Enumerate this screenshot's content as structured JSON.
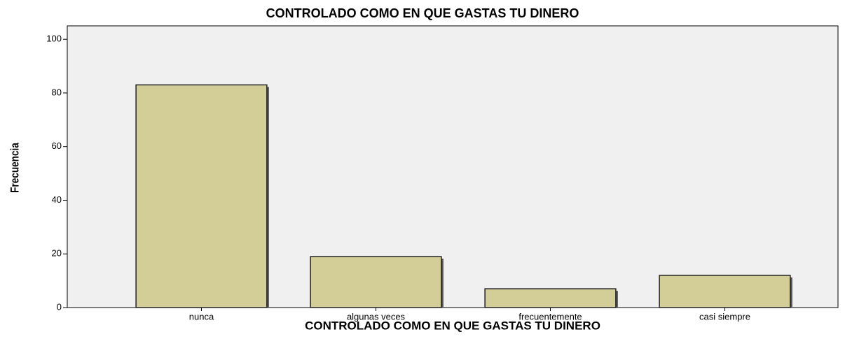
{
  "chart_data": {
    "type": "bar",
    "title": "CONTROLADO COMO EN QUE GASTAS TU DINERO",
    "x_label": "CONTROLADO COMO EN QUE GASTAS TU DINERO",
    "y_label": "Frecuencia",
    "categories": [
      "nunca",
      "algunas veces",
      "frecuentemente",
      "casi siempre"
    ],
    "values": [
      83,
      19,
      7,
      12
    ],
    "color": "#d3ce97",
    "ylim": [
      0,
      105
    ],
    "yticks": [
      0,
      20,
      40,
      60,
      80,
      100
    ],
    "grid": false
  }
}
